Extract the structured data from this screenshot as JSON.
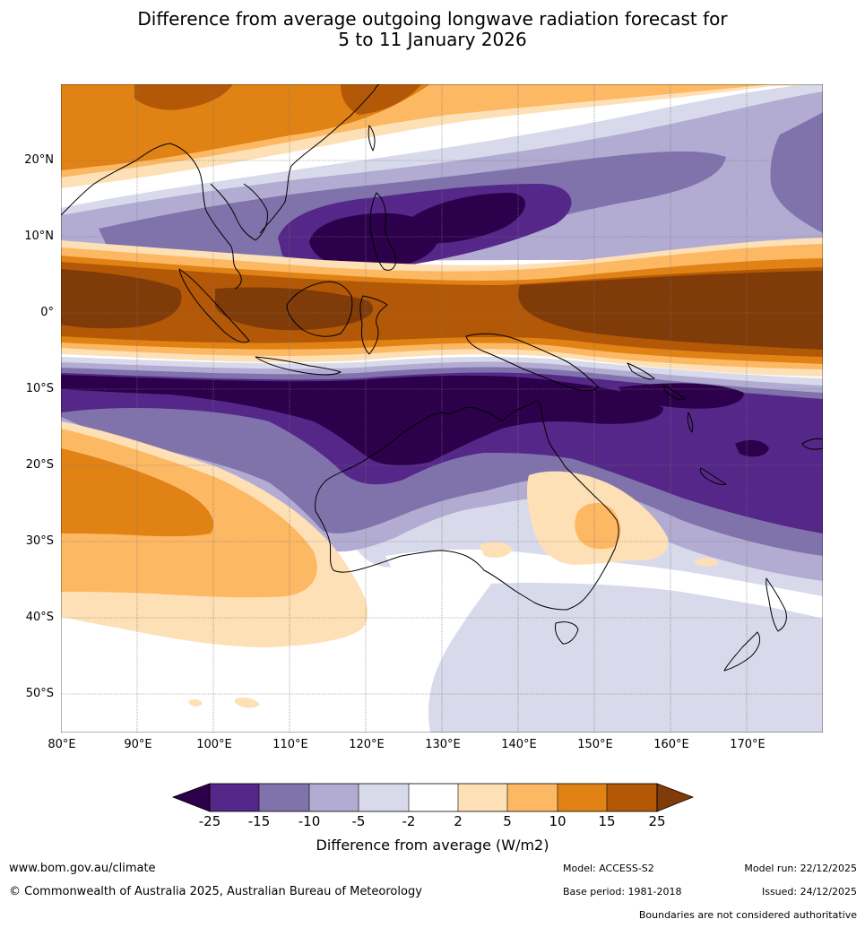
{
  "title": {
    "line1": "Difference from average outgoing longwave radiation forecast for",
    "line2": "5 to 11 January 2026"
  },
  "map": {
    "lat_labels": [
      "20°N",
      "10°N",
      "0°",
      "10°S",
      "20°S",
      "30°S",
      "40°S",
      "50°S"
    ],
    "lon_labels": [
      "80°E",
      "90°E",
      "100°E",
      "110°E",
      "120°E",
      "130°E",
      "140°E",
      "150°E",
      "160°E",
      "170°E"
    ],
    "colors": {
      "lt_-25": "#2d004b",
      "-25_-15": "#542788",
      "-15_-10": "#8073ac",
      "-10_-5": "#b2abd2",
      "-5_-2": "#d8daeb",
      "-2_2": "#ffffff",
      "2_5": "#fee0b6",
      "5_10": "#fdb863",
      "10_15": "#e08214",
      "15_25": "#b35806",
      "gt_25": "#7f3b08"
    }
  },
  "colorbar": {
    "ticks": [
      "-25",
      "-15",
      "-10",
      "-5",
      "-2",
      "2",
      "5",
      "10",
      "15",
      "25"
    ],
    "title": "Difference from average (W/m2)"
  },
  "footer": {
    "website": "www.bom.gov.au/climate",
    "copyright": "© Commonwealth of Australia 2025, Australian Bureau of Meteorology",
    "model": "Model: ACCESS-S2",
    "base_period": "Base period: 1981-2018",
    "model_run": "Model run: 22/12/2025",
    "issued": "Issued: 24/12/2025",
    "disclaimer": "Boundaries are not considered authoritative"
  }
}
